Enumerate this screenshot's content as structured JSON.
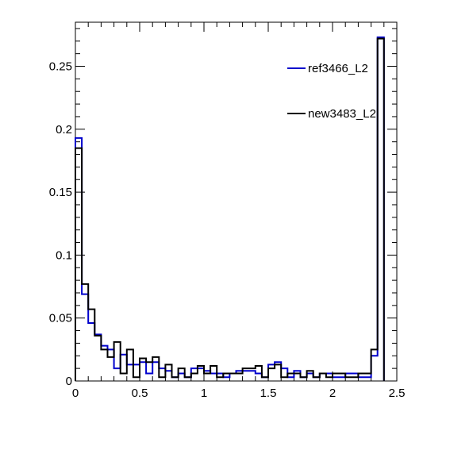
{
  "chart_data": {
    "type": "histogram",
    "title": "",
    "xlabel": "",
    "ylabel": "",
    "xlim": [
      0,
      2.5
    ],
    "ylim": [
      0,
      0.285
    ],
    "bin_width": 0.05,
    "x_ticks": [
      0,
      0.5,
      1,
      1.5,
      2,
      2.5
    ],
    "x_tick_labels": [
      "0",
      "0.5",
      "1",
      "1.5",
      "2",
      "2.5"
    ],
    "y_ticks": [
      0,
      0.05,
      0.1,
      0.15,
      0.2,
      0.25
    ],
    "y_tick_labels": [
      "0",
      "0.05",
      "0.1",
      "0.15",
      "0.2",
      "0.25"
    ],
    "grid": false,
    "legend_position": "top-right",
    "series": [
      {
        "name": "ref3466_L2",
        "color": "#0000cc",
        "values": [
          0.193,
          0.069,
          0.046,
          0.037,
          0.028,
          0.025,
          0.01,
          0.021,
          0.013,
          0.013,
          0.015,
          0.006,
          0.015,
          0.01,
          0.008,
          0.003,
          0.006,
          0.003,
          0.01,
          0.01,
          0.008,
          0.006,
          0.006,
          0.003,
          0.006,
          0.008,
          0.008,
          0.008,
          0.006,
          0.003,
          0.013,
          0.015,
          0.01,
          0.003,
          0.008,
          0.003,
          0.006,
          0.003,
          0.006,
          0.006,
          0.003,
          0.003,
          0.006,
          0.006,
          0.003,
          0.003,
          0.02,
          0.273
        ]
      },
      {
        "name": "new3483_L2",
        "color": "#000000",
        "values": [
          0.185,
          0.077,
          0.057,
          0.036,
          0.025,
          0.019,
          0.031,
          0.006,
          0.025,
          0.003,
          0.018,
          0.015,
          0.019,
          0.003,
          0.013,
          0.003,
          0.01,
          0.003,
          0.006,
          0.012,
          0.006,
          0.012,
          0.003,
          0.006,
          0.006,
          0.006,
          0.01,
          0.01,
          0.012,
          0.003,
          0.01,
          0.013,
          0.003,
          0.006,
          0.006,
          0.003,
          0.008,
          0.003,
          0.006,
          0.003,
          0.006,
          0.006,
          0.003,
          0.003,
          0.006,
          0.006,
          0.025,
          0.272
        ]
      }
    ]
  }
}
